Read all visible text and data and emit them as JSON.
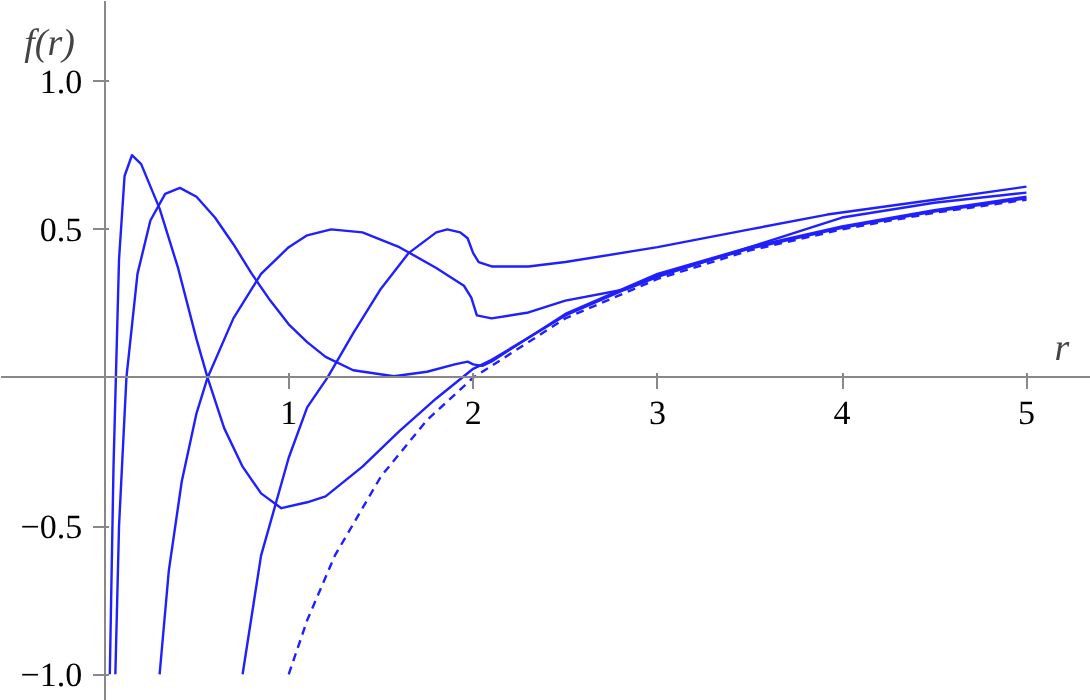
{
  "chart_data": {
    "type": "line",
    "xlabel": "r",
    "ylabel": "f(r)",
    "xlim": [
      -0.56,
      5.35
    ],
    "ylim": [
      -1.09,
      1.27
    ],
    "xticks": [
      1,
      2,
      3,
      4,
      5
    ],
    "yticks": [
      {
        "value": -1.0,
        "label": "−1.0"
      },
      {
        "value": -0.5,
        "label": "−0.5"
      },
      {
        "value": 0.5,
        "label": "0.5"
      },
      {
        "value": 1.0,
        "label": "1.0"
      }
    ],
    "grid": false,
    "marker": "none",
    "series": [
      {
        "color": "#1f1fff",
        "line_style": "solid",
        "x": [
          0.03,
          0.05,
          0.08,
          0.11,
          0.15,
          0.2,
          0.3,
          0.4,
          0.5,
          0.56,
          0.65,
          0.75,
          0.85,
          0.96,
          1.1,
          1.2,
          1.4,
          1.6,
          1.8,
          2.0,
          2.1,
          2.5,
          3,
          3.5,
          4,
          4.5,
          5
        ],
        "values": [
          -1,
          -0.3,
          0.4,
          0.68,
          0.75,
          0.72,
          0.57,
          0.37,
          0.13,
          0.0,
          -0.17,
          -0.3,
          -0.39,
          -0.44,
          -0.42,
          -0.4,
          -0.3,
          -0.18,
          -0.07,
          0.03,
          0.06,
          0.21,
          0.345,
          0.435,
          0.505,
          0.56,
          0.605
        ]
      },
      {
        "color": "#1f1fff",
        "line_style": "solid",
        "x": [
          0.06,
          0.08,
          0.12,
          0.18,
          0.25,
          0.33,
          0.41,
          0.5,
          0.6,
          0.7,
          0.8,
          0.9,
          1.0,
          1.1,
          1.2,
          1.35,
          1.57,
          1.75,
          1.9,
          1.97,
          2.0,
          2.05,
          2.1,
          2.5,
          3,
          3.5,
          4,
          4.5,
          5
        ],
        "values": [
          -1,
          -0.5,
          0.0,
          0.35,
          0.53,
          0.62,
          0.64,
          0.61,
          0.54,
          0.45,
          0.35,
          0.26,
          0.18,
          0.12,
          0.07,
          0.025,
          0.005,
          0.02,
          0.045,
          0.054,
          0.045,
          0.04,
          0.055,
          0.215,
          0.35,
          0.44,
          0.51,
          0.565,
          0.61
        ]
      },
      {
        "color": "#1f1fff",
        "line_style": "solid",
        "x": [
          0.3,
          0.35,
          0.42,
          0.5,
          0.56,
          0.7,
          0.85,
          1.0,
          1.1,
          1.23,
          1.4,
          1.6,
          1.8,
          1.95,
          1.99,
          2.02,
          2.1,
          2.3,
          2.5,
          2.84,
          3,
          3.5,
          4,
          4.5,
          5
        ],
        "values": [
          -1,
          -0.65,
          -0.35,
          -0.12,
          0.0,
          0.2,
          0.35,
          0.44,
          0.48,
          0.5,
          0.49,
          0.44,
          0.37,
          0.31,
          0.27,
          0.21,
          0.2,
          0.22,
          0.26,
          0.3,
          0.34,
          0.44,
          0.54,
          0.59,
          0.624
        ]
      },
      {
        "color": "#1f1fff",
        "line_style": "solid",
        "x": [
          0.75,
          0.85,
          1.0,
          1.1,
          1.21,
          1.35,
          1.5,
          1.65,
          1.8,
          1.86,
          1.93,
          1.97,
          2.0,
          2.03,
          2.1,
          2.3,
          2.5,
          3,
          3.5,
          3.92,
          4.5,
          5
        ],
        "values": [
          -1,
          -0.6,
          -0.27,
          -0.1,
          0.0,
          0.15,
          0.3,
          0.42,
          0.49,
          0.5,
          0.49,
          0.47,
          0.42,
          0.39,
          0.375,
          0.375,
          0.39,
          0.44,
          0.5,
          0.55,
          0.6,
          0.644
        ]
      },
      {
        "color": "#1f1fff",
        "line_style": "dashed",
        "x": [
          1,
          1.1,
          1.25,
          1.5,
          1.75,
          2,
          2.5,
          3,
          3.5,
          4,
          4.5,
          5
        ],
        "values": [
          -1,
          -0.818,
          -0.6,
          -0.333,
          -0.143,
          0,
          0.2,
          0.333,
          0.429,
          0.5,
          0.556,
          0.6
        ]
      }
    ]
  }
}
